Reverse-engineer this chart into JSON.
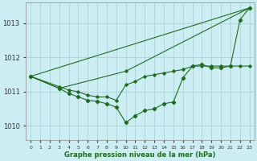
{
  "bg_color": "#cceef2",
  "grid_color": "#b0d8dc",
  "line_color": "#1f6b1f",
  "xlabel": "Graphe pression niveau de la mer (hPa)",
  "xlim": [
    -0.5,
    23.5
  ],
  "ylim": [
    1009.6,
    1013.6
  ],
  "yticks": [
    1010,
    1011,
    1012,
    1013
  ],
  "xticks": [
    0,
    1,
    2,
    3,
    4,
    5,
    6,
    7,
    8,
    9,
    10,
    11,
    12,
    13,
    14,
    15,
    16,
    17,
    18,
    19,
    20,
    21,
    22,
    23
  ],
  "series_top": {
    "x": [
      0,
      23
    ],
    "y": [
      1011.45,
      1013.45
    ]
  },
  "series_mid": {
    "x": [
      0,
      3,
      4,
      5,
      6,
      7,
      8,
      9,
      10,
      11,
      12,
      13,
      14,
      15,
      16,
      17,
      18,
      19,
      20,
      21,
      22,
      23
    ],
    "y": [
      1011.45,
      1011.15,
      1011.05,
      1011.0,
      1010.9,
      1010.85,
      1010.85,
      1010.75,
      1011.2,
      1011.3,
      1011.45,
      1011.5,
      1011.55,
      1011.6,
      1011.65,
      1011.75,
      1011.75,
      1011.75,
      1011.75,
      1011.75,
      1011.75,
      1011.75
    ]
  },
  "series_bottom": {
    "x": [
      0,
      3,
      4,
      5,
      6,
      7,
      8,
      9,
      10,
      11,
      12,
      13,
      14,
      15,
      16,
      17,
      18,
      19,
      20,
      21,
      22,
      23
    ],
    "y": [
      1011.45,
      1011.1,
      1010.95,
      1010.85,
      1010.75,
      1010.72,
      1010.65,
      1010.55,
      1010.1,
      1010.3,
      1010.45,
      1010.5,
      1010.65,
      1010.7,
      1011.4,
      1011.75,
      1011.8,
      1011.7,
      1011.7,
      1011.75,
      1013.1,
      1013.45
    ]
  },
  "series_line2": {
    "x": [
      0,
      3,
      10,
      23
    ],
    "y": [
      1011.45,
      1011.1,
      1011.6,
      1013.45
    ]
  }
}
